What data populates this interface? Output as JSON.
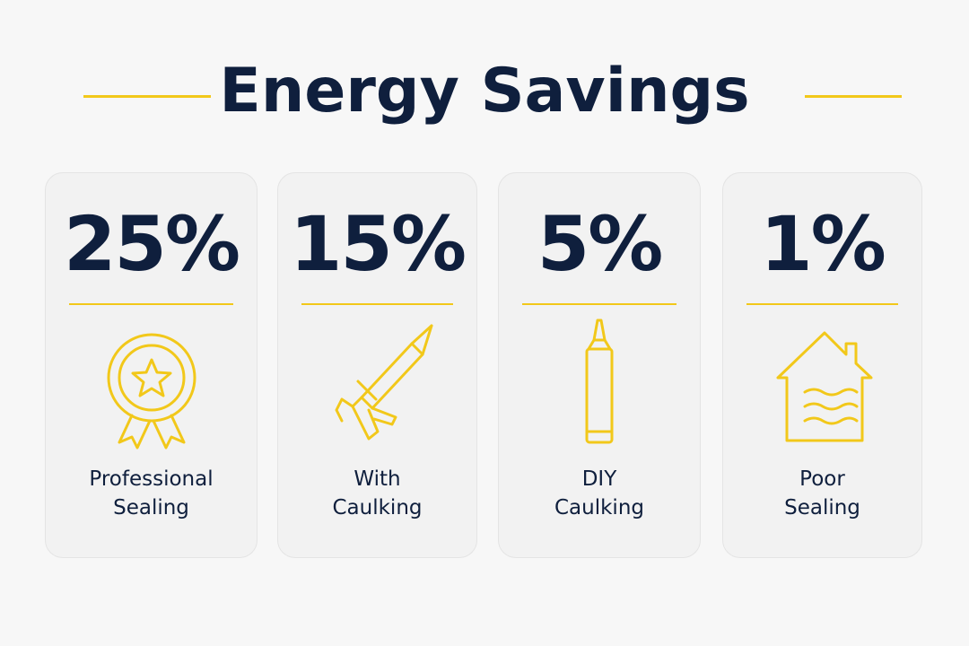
{
  "header": {
    "title": "Energy Savings"
  },
  "cards": [
    {
      "value": "25%",
      "label": [
        "Professional",
        "Sealing"
      ]
    },
    {
      "value": "15%",
      "label": [
        "With",
        "Caulking"
      ]
    },
    {
      "value": "5%",
      "label": [
        "DIY",
        "Caulking"
      ]
    },
    {
      "value": "1%",
      "label": [
        "Poor",
        "Sealing"
      ]
    }
  ]
}
